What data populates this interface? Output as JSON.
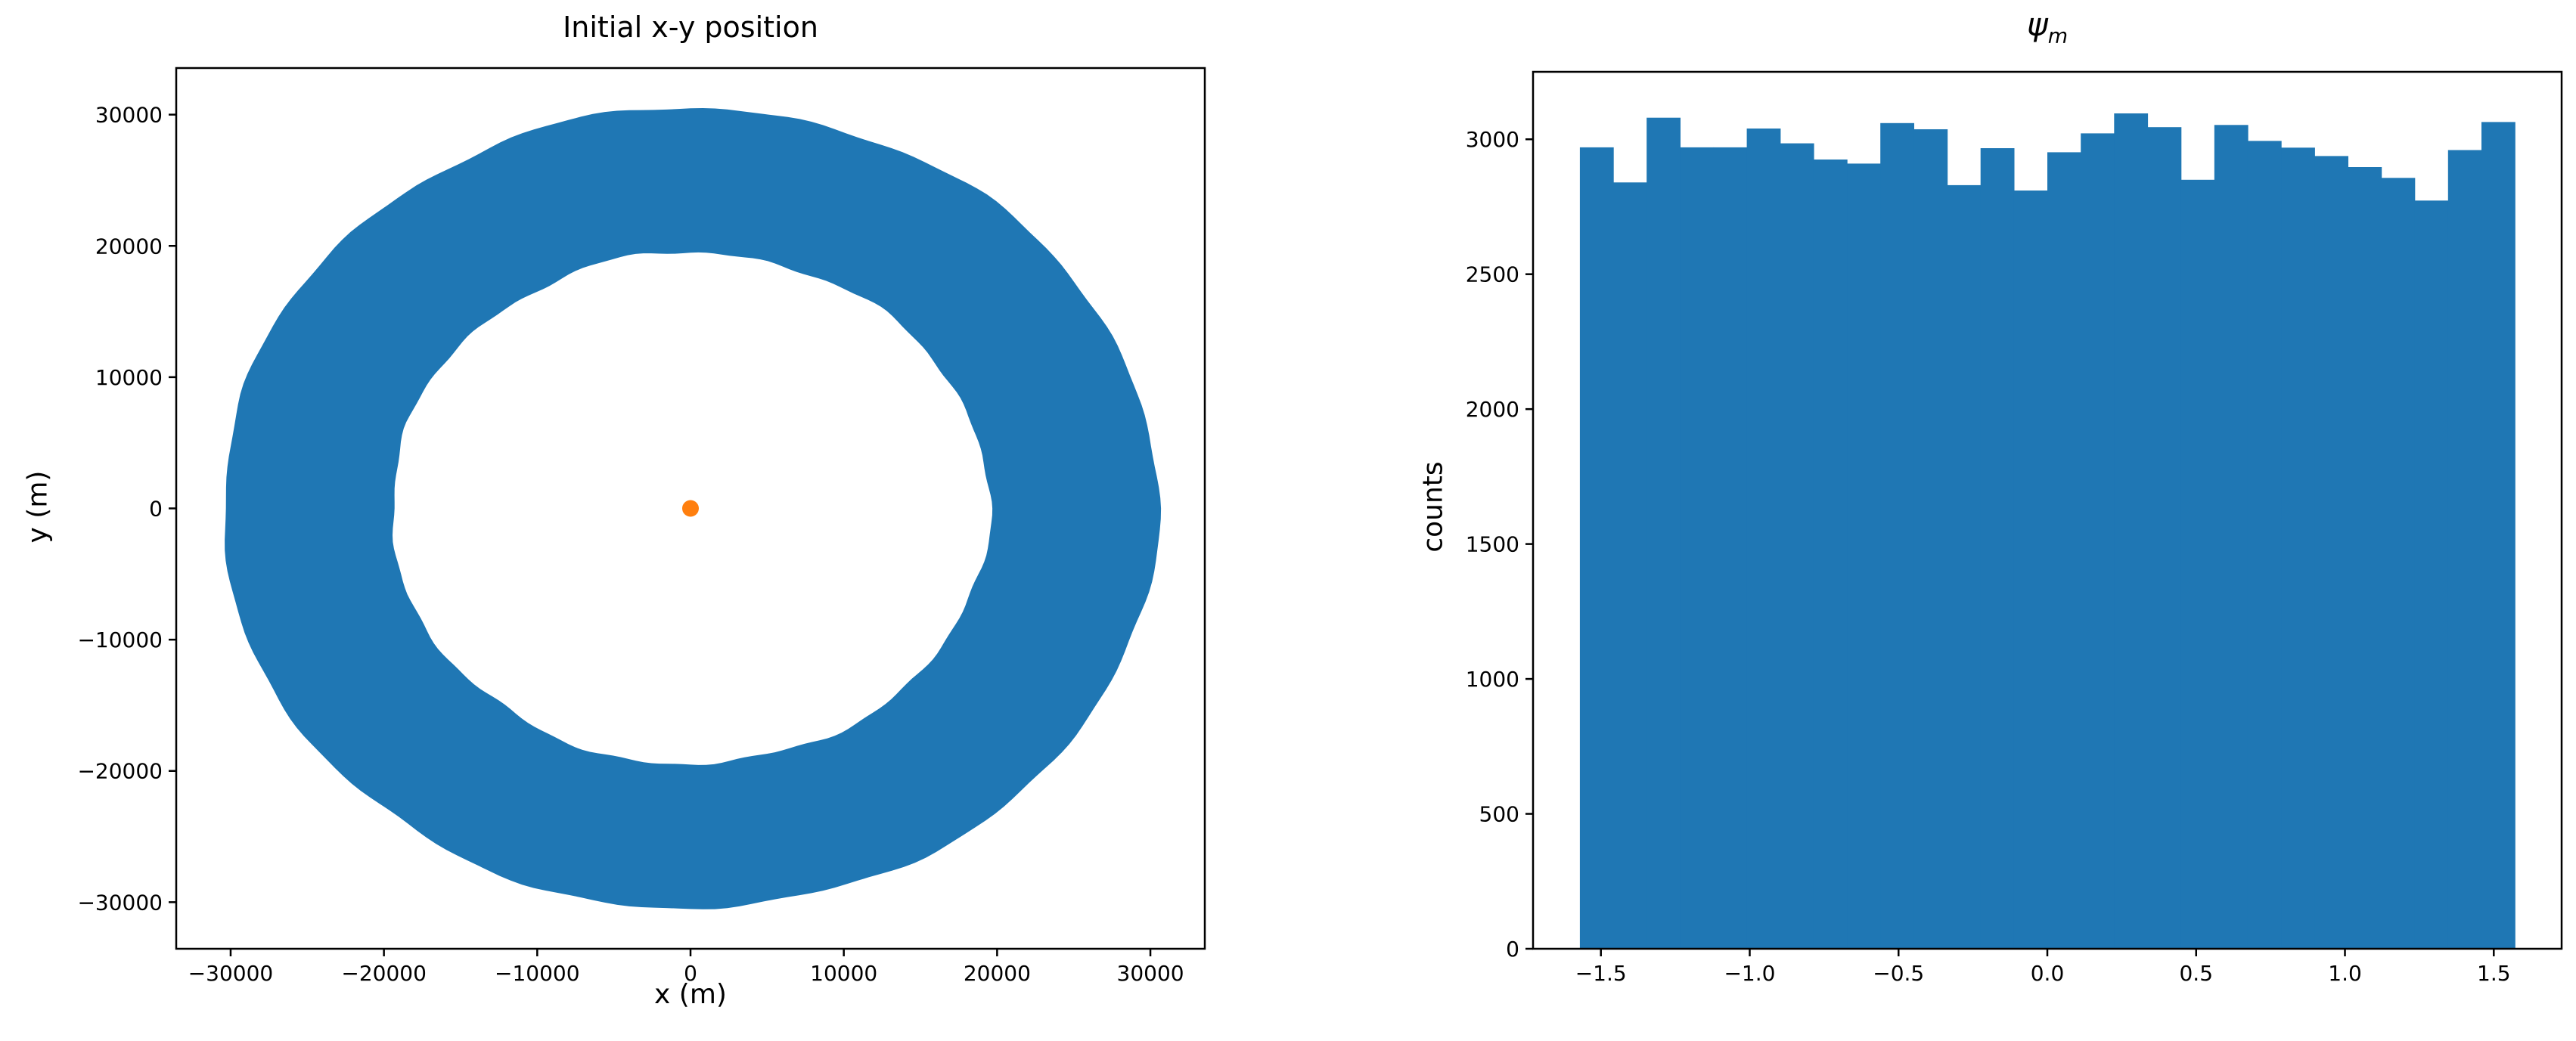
{
  "colors": {
    "series_blue": "#1f77b4",
    "marker_orange": "#ff7f0e",
    "axis": "#000000",
    "background": "#ffffff"
  },
  "chart_data": [
    {
      "id": "xy-position",
      "type": "scatter",
      "title": "Initial x-y position",
      "xlabel": "x (m)",
      "ylabel": "y (m)",
      "xlim": [
        -33550,
        33550
      ],
      "ylim": [
        -33550,
        33550
      ],
      "grid": false,
      "legend": null,
      "xticks": {
        "values": [
          -30000,
          -20000,
          -10000,
          0,
          10000,
          20000,
          30000
        ],
        "labels": [
          "−30000",
          "−20000",
          "−10000",
          "0",
          "10000",
          "20000",
          "30000"
        ]
      },
      "yticks": {
        "values": [
          -30000,
          -20000,
          -10000,
          0,
          10000,
          20000,
          30000
        ],
        "labels": [
          "−30000",
          "−20000",
          "−10000",
          "0",
          "10000",
          "20000",
          "30000"
        ]
      },
      "series": [
        {
          "name": "initial x-y positions",
          "shape": "annulus",
          "center": [
            0,
            0
          ],
          "inner_radius_m": 19500,
          "outer_radius_m": 30500,
          "color": "#1f77b4",
          "note": "dense uniform scatter of points filling ring between radii"
        },
        {
          "name": "origin marker",
          "shape": "point",
          "x": 0,
          "y": 0,
          "radius_px": 11,
          "color": "#ff7f0e"
        }
      ]
    },
    {
      "id": "psi-m-histogram",
      "type": "bar",
      "title_symbol": "ψ",
      "title_sub": "m",
      "xlabel": "",
      "ylabel": "counts",
      "xlim": [
        -1.728,
        1.728
      ],
      "ylim": [
        0,
        3250
      ],
      "grid": false,
      "legend": null,
      "xticks": {
        "values": [
          -1.5,
          -1.0,
          -0.5,
          0.0,
          0.5,
          1.0,
          1.5
        ],
        "labels": [
          "−1.5",
          "−1.0",
          "−0.5",
          "0.0",
          "0.5",
          "1.0",
          "1.5"
        ]
      },
      "yticks": {
        "values": [
          0,
          500,
          1000,
          1500,
          2000,
          2500,
          3000
        ],
        "labels": [
          "0",
          "500",
          "1000",
          "1500",
          "2000",
          "2500",
          "3000"
        ]
      },
      "bin_start": -1.5708,
      "bin_end": 1.5708,
      "bin_count": 28,
      "counts": [
        2970,
        2840,
        3080,
        2970,
        2970,
        3040,
        2985,
        2925,
        2910,
        3060,
        3037,
        2830,
        2967,
        2810,
        2952,
        3022,
        3096,
        3045,
        2850,
        3053,
        2994,
        2969,
        2938,
        2897,
        2857,
        2773,
        2960,
        3064
      ],
      "bar_color": "#1f77b4"
    }
  ]
}
